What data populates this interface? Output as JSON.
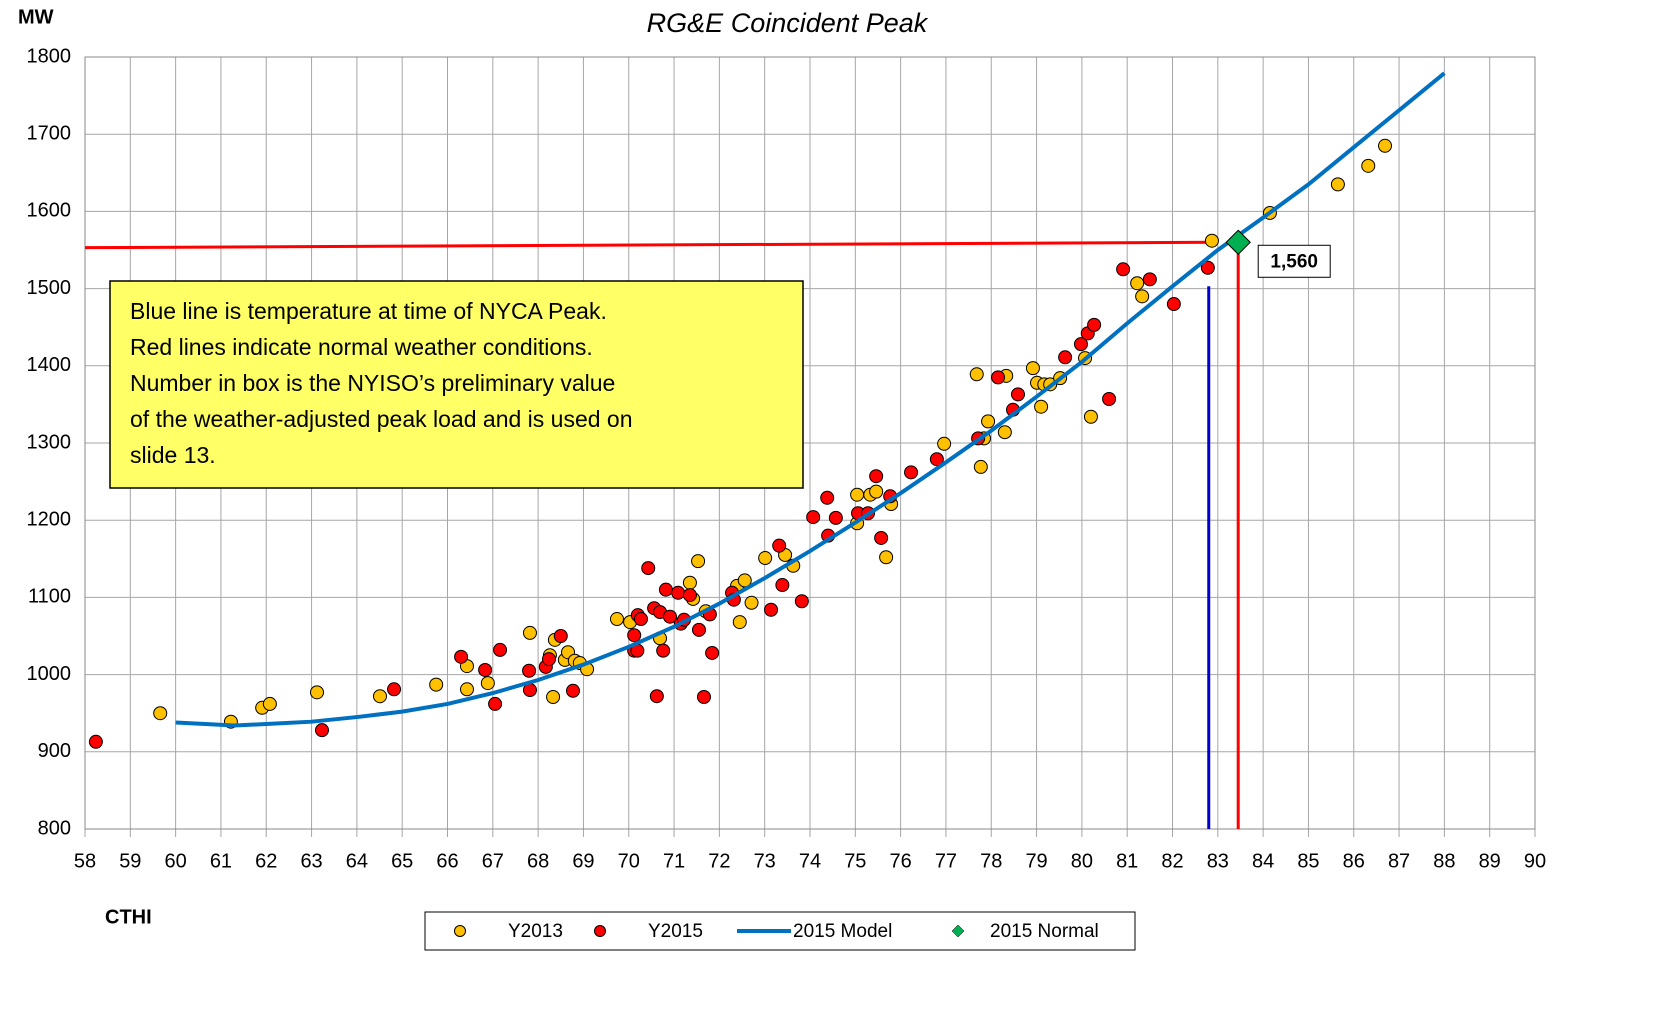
{
  "chart_data": {
    "type": "scatter",
    "title": "RG&E Coincident Peak",
    "ylabel": "MW",
    "xlabel": "CTHI",
    "xlim": [
      58,
      90
    ],
    "xticks": [
      58,
      59,
      60,
      61,
      62,
      63,
      64,
      65,
      66,
      67,
      68,
      69,
      70,
      71,
      72,
      73,
      74,
      75,
      76,
      77,
      78,
      79,
      80,
      81,
      82,
      83,
      84,
      85,
      86,
      87,
      88,
      89,
      90
    ],
    "ylim": [
      800,
      1800
    ],
    "yticks": [
      800,
      900,
      1000,
      1100,
      1200,
      1300,
      1400,
      1500,
      1600,
      1700,
      1800
    ],
    "grid": true,
    "series": [
      {
        "name": "Y2013",
        "type": "scatter",
        "color": "#ffc000",
        "x": [
          59.66,
          61.22,
          61.91,
          62.08,
          63.12,
          64.51,
          65.75,
          66.43,
          66.43,
          66.89,
          67.82,
          68.33,
          68.26,
          68.37,
          68.59,
          68.66,
          68.81,
          68.92,
          69.08,
          69.74,
          70.03,
          70.69,
          71.35,
          71.53,
          71.42,
          71.7,
          72.39,
          72.45,
          72.56,
          72.71,
          73.01,
          73.45,
          73.63,
          75.04,
          75.04,
          75.33,
          75.46,
          75.68,
          75.79,
          76.96,
          77.68,
          77.77,
          77.84,
          77.93,
          78.3,
          78.33,
          78.92,
          79.01,
          79.1,
          79.17,
          79.3,
          79.52,
          80.07,
          80.2,
          81.22,
          81.33,
          82.87,
          84.15,
          85.65,
          86.32,
          86.69
        ],
        "values": [
          950,
          939,
          957,
          962,
          977,
          972,
          987,
          1011,
          981,
          989,
          1054,
          971,
          1025,
          1045,
          1019,
          1029,
          1018,
          1015,
          1007,
          1072,
          1068,
          1047,
          1119,
          1147,
          1098,
          1082,
          1115,
          1068,
          1122,
          1093,
          1151,
          1155,
          1141,
          1233,
          1196,
          1233,
          1237,
          1152,
          1221,
          1299,
          1389,
          1269,
          1306,
          1328,
          1314,
          1387,
          1397,
          1378,
          1347,
          1376,
          1376,
          1384,
          1410,
          1334,
          1507,
          1490,
          1562,
          1598,
          1635,
          1659,
          1685
        ]
      },
      {
        "name": "Y2015",
        "type": "scatter",
        "color": "#ff0000",
        "x": [
          58.24,
          63.23,
          64.82,
          66.3,
          66.83,
          67.05,
          67.16,
          67.8,
          67.82,
          68.17,
          68.24,
          68.5,
          68.77,
          70.12,
          70.12,
          70.19,
          70.2,
          70.27,
          70.43,
          70.56,
          70.62,
          70.69,
          70.76,
          70.82,
          70.91,
          71.09,
          71.15,
          71.22,
          71.35,
          71.55,
          71.66,
          71.79,
          71.84,
          72.28,
          72.32,
          73.14,
          73.32,
          73.39,
          73.82,
          74.07,
          74.38,
          74.4,
          74.57,
          75.06,
          75.28,
          75.46,
          75.57,
          75.77,
          76.23,
          76.8,
          77.71,
          78.15,
          78.48,
          78.59,
          79.63,
          79.98,
          80.13,
          80.27,
          80.6,
          80.91,
          81.5,
          82.03,
          82.78
        ],
        "values": [
          913,
          928,
          981,
          1023,
          1006,
          962,
          1032,
          1005,
          980,
          1010,
          1020,
          1050,
          979,
          1031,
          1051,
          1031,
          1077,
          1072,
          1138,
          1086,
          972,
          1081,
          1031,
          1110,
          1075,
          1106,
          1066,
          1071,
          1103,
          1058,
          971,
          1078,
          1028,
          1106,
          1097,
          1084,
          1167,
          1116,
          1095,
          1204,
          1229,
          1180,
          1203,
          1209,
          1209,
          1257,
          1177,
          1231,
          1262,
          1279,
          1306,
          1385,
          1343,
          1363,
          1411,
          1428,
          1442,
          1453,
          1357,
          1525,
          1512,
          1480,
          1527
        ]
      },
      {
        "name": "2015 Model",
        "type": "line",
        "color": "#0070c0",
        "x": [
          60,
          61.3,
          62,
          63,
          64,
          65,
          66,
          67,
          68,
          69,
          70,
          71,
          72,
          73,
          74,
          75,
          76,
          77,
          78,
          79,
          80,
          81,
          82,
          83,
          84,
          85,
          86,
          87,
          88
        ],
        "values": [
          938,
          934,
          936,
          939,
          945,
          952,
          962,
          976,
          993,
          1013,
          1036,
          1062,
          1092,
          1125,
          1160,
          1197,
          1235,
          1275,
          1316,
          1360,
          1405,
          1455,
          1503,
          1550,
          1592,
          1635,
          1683,
          1731,
          1779
        ]
      },
      {
        "name": "2015 Normal",
        "type": "diamond",
        "color": "#00b050",
        "x": [
          83.45
        ],
        "values": [
          1560
        ],
        "value_labels": [
          "1,560"
        ]
      }
    ],
    "lines": [
      {
        "color": "#ff0000",
        "x": [
          58,
          82.9
        ],
        "y": [
          1553,
          1560
        ]
      },
      {
        "color": "#ff0000",
        "x": [
          83.45,
          83.45
        ],
        "y": [
          800,
          1545
        ]
      },
      {
        "color": "#0000cc",
        "x": [
          82.8,
          82.8
        ],
        "y": [
          800,
          1503
        ]
      }
    ],
    "annotation": [
      "Blue line is temperature at time of NYCA Peak.",
      "Red lines indicate normal weather conditions.",
      "Number in box is the NYISO’s preliminary value",
      "of the weather-adjusted peak load and is used on",
      "slide 13."
    ]
  }
}
